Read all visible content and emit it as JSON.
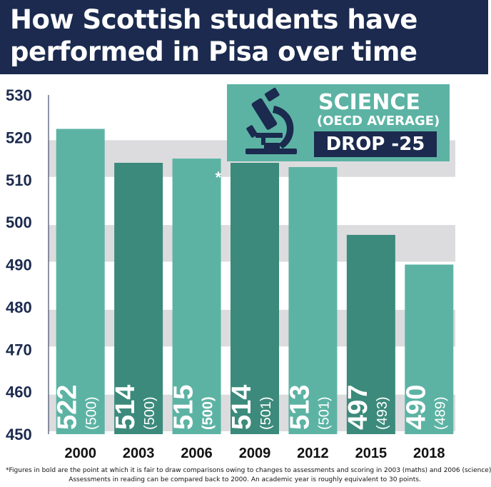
{
  "title_lines": [
    "How Scottish students have",
    "performed in Pisa over time"
  ],
  "callout": {
    "title": "SCIENCE",
    "subtitle": "(OECD AVERAGE)",
    "drop": "DROP -25",
    "icon": "microscope-icon"
  },
  "footnote_lines": [
    "*Figures in bold are the point at which it is fair to draw comparisons owing to changes to assessments and scoring in 2003 (maths) and 2006 (science)",
    "Assessments in reading can be compared back to 2000. An academic year is roughly equivalent to 30 points."
  ],
  "colors": {
    "header_bg": "#1b2a4e",
    "bar_light": "#5cb3a4",
    "bar_dark": "#3b8a7b",
    "band_grey": "#dcdcde",
    "axis_text": "#1b2a4e"
  },
  "chart_data": {
    "type": "bar",
    "categories": [
      "2000",
      "2003",
      "2006",
      "2009",
      "2012",
      "2015",
      "2018"
    ],
    "values": [
      522,
      514,
      515,
      514,
      513,
      497,
      490
    ],
    "value_labels": [
      "522",
      "514",
      "515",
      "514",
      "513",
      "497",
      "490"
    ],
    "oecd_average_labels": [
      "(500)",
      "(500)",
      "(500)",
      "(501)",
      "(501)",
      "(493)",
      "(489)"
    ],
    "oecd_average_values": [
      500,
      500,
      500,
      501,
      501,
      493,
      489
    ],
    "oecd_bold": [
      false,
      false,
      true,
      false,
      false,
      false,
      false
    ],
    "asterisk": [
      false,
      false,
      true,
      false,
      false,
      false,
      false
    ],
    "bar_shade": [
      "light",
      "dark",
      "light",
      "dark",
      "light",
      "dark",
      "light"
    ],
    "ylim": [
      450,
      530
    ],
    "yticks": [
      450,
      460,
      470,
      480,
      490,
      500,
      510,
      520,
      530
    ],
    "title": "How Scottish students have performed in Pisa over time",
    "xlabel": "",
    "ylabel": "",
    "grid": "alternating bands"
  }
}
